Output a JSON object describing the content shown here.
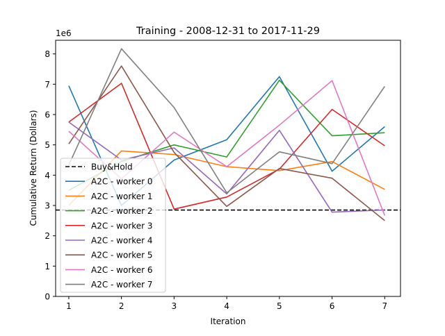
{
  "chart_data": {
    "type": "line",
    "title": "Training - 2008-12-31 to 2017-11-29",
    "xlabel": "Iteration",
    "ylabel": "Cumulative Return (Dollars)",
    "y_offset_label": "1e6",
    "x": [
      1,
      2,
      3,
      4,
      5,
      6,
      7
    ],
    "xlim": [
      0.75,
      7.3
    ],
    "ylim": [
      0,
      8.45
    ],
    "x_ticks": [
      1,
      2,
      3,
      4,
      5,
      6,
      7
    ],
    "y_ticks": [
      0,
      1,
      2,
      3,
      4,
      5,
      6,
      7,
      8
    ],
    "grid": false,
    "legend_position": "lower-left",
    "baseline": {
      "name": "Buy&Hold",
      "value": 2.85,
      "color": "#000000",
      "style": "dashed"
    },
    "series": [
      {
        "name": "A2C - worker 0",
        "color": "#1f77b4",
        "values": [
          6.95,
          3.0,
          4.5,
          5.17,
          7.25,
          4.13,
          5.6
        ]
      },
      {
        "name": "A2C - worker 1",
        "color": "#ff7f0e",
        "values": [
          3.0,
          4.8,
          4.68,
          4.28,
          4.15,
          4.45,
          3.53
        ]
      },
      {
        "name": "A2C - worker 2",
        "color": "#2ca02c",
        "values": [
          3.5,
          4.45,
          5.0,
          4.6,
          7.13,
          5.3,
          5.4
        ]
      },
      {
        "name": "A2C - worker 3",
        "color": "#d62728",
        "values": [
          5.75,
          7.03,
          2.88,
          3.28,
          4.2,
          6.17,
          4.97
        ]
      },
      {
        "name": "A2C - worker 4",
        "color": "#9467bd",
        "values": [
          5.75,
          4.5,
          4.9,
          3.38,
          5.48,
          2.78,
          2.85
        ]
      },
      {
        "name": "A2C - worker 5",
        "color": "#8c564b",
        "values": [
          5.03,
          7.6,
          4.75,
          2.97,
          4.22,
          3.9,
          2.5
        ]
      },
      {
        "name": "A2C - worker 6",
        "color": "#e377c2",
        "values": [
          5.45,
          3.88,
          5.42,
          4.28,
          5.65,
          7.12,
          2.67
        ]
      },
      {
        "name": "A2C - worker 7",
        "color": "#7f7f7f",
        "values": [
          4.33,
          8.17,
          6.23,
          3.42,
          4.77,
          4.38,
          6.93
        ]
      }
    ]
  }
}
